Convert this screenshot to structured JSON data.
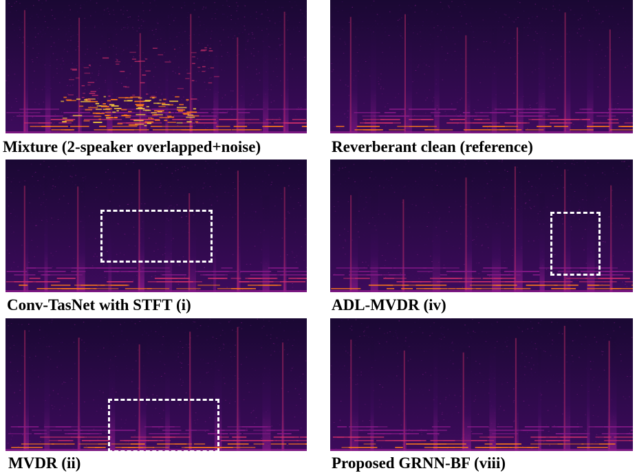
{
  "figure": {
    "panels": [
      {
        "caption": "Mixture (2-speaker overlapped+noise)",
        "variant": "mixture"
      },
      {
        "caption": "Reverberant clean (reference)",
        "variant": "reference"
      },
      {
        "caption": "Conv-TasNet with STFT (i)",
        "variant": "convtasnet"
      },
      {
        "caption": "ADL-MVDR (iv)",
        "variant": "adlmvdr"
      },
      {
        "caption": "MVDR (ii)",
        "variant": "mvdr"
      },
      {
        "caption": "Proposed GRNN-BF (viii)",
        "variant": "grnnbf"
      }
    ],
    "colormap": {
      "background": "#1a0833",
      "low": "#3d0b5c",
      "mid": "#8a1a8a",
      "high": "#d2306a",
      "peak": "#ff7a1a",
      "hot": "#ffd23a"
    },
    "highlight_color": "#ffffff"
  }
}
